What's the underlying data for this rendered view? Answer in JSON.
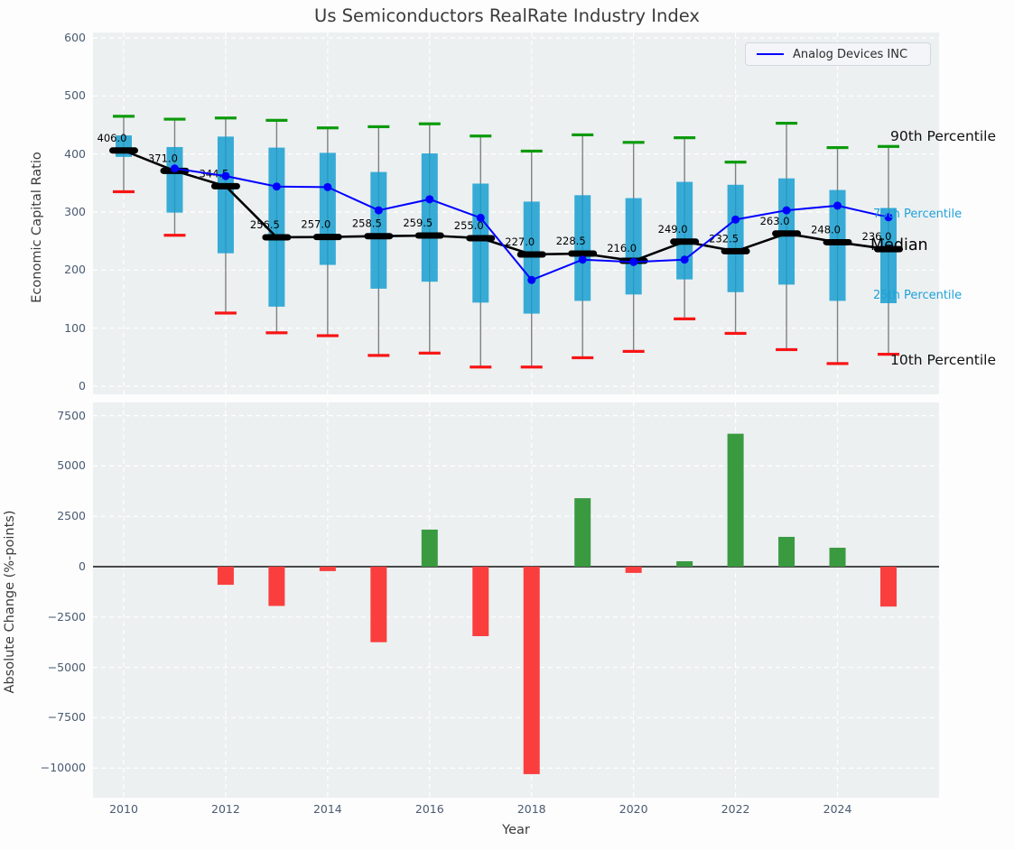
{
  "title": "Us Semiconductors RealRate Industry Index",
  "colors": {
    "company_line": "#0000FF",
    "median": "#000000",
    "box_fill": "#189FD0",
    "whisker": "#808080",
    "p90_cap": "#0B9A0B",
    "p10_cap": "#F81414",
    "bar_positive": "#3A9A40",
    "bar_negative": "#FA3E3E",
    "axes_background": "#ECF0F1",
    "grid": "#FFFFFF",
    "tick_label": "#4A5B70",
    "percentile_text_cyan": "#21A1D8",
    "text": "#3A3A3A"
  },
  "chart_data": [
    {
      "type": "boxplot+line",
      "title": "Us Semiconductors RealRate Industry Index",
      "ylabel": "Economic Capital Ratio",
      "xlabel": "",
      "x": [
        2010,
        2011,
        2012,
        2013,
        2014,
        2015,
        2016,
        2017,
        2018,
        2019,
        2020,
        2021,
        2022,
        2023,
        2024,
        2025
      ],
      "series": [
        {
          "name": "90th Percentile",
          "role": "p90",
          "values": [
            465,
            460,
            462,
            458,
            445,
            447,
            452,
            431,
            405,
            433,
            420,
            428,
            386,
            453,
            411,
            413
          ]
        },
        {
          "name": "75th Percentile",
          "role": "p75",
          "values": [
            432,
            412,
            430,
            411,
            402,
            369,
            401,
            349,
            318,
            329,
            324,
            352,
            347,
            358,
            338,
            307
          ]
        },
        {
          "name": "Median",
          "role": "median",
          "values": [
            406.0,
            371.0,
            344.5,
            256.5,
            257.0,
            258.5,
            259.5,
            255.0,
            227.0,
            228.5,
            216.0,
            249.0,
            232.5,
            263.0,
            248.0,
            236.0
          ]
        },
        {
          "name": "25th Percentile",
          "role": "p25",
          "values": [
            395,
            299,
            229,
            137,
            209,
            168,
            180,
            144,
            125,
            147,
            158,
            184,
            162,
            175,
            147,
            143
          ]
        },
        {
          "name": "10th Percentile",
          "role": "p10",
          "values": [
            335,
            260,
            126,
            92,
            87,
            53,
            57,
            33,
            33,
            49,
            60,
            116,
            91,
            63,
            39,
            55
          ]
        },
        {
          "name": "Analog Devices INC",
          "role": "company_line",
          "values": [
            null,
            375,
            362,
            344,
            343,
            303,
            322,
            290,
            183,
            218,
            214,
            218,
            287,
            303,
            311,
            291
          ]
        }
      ],
      "median_labels": [
        "406.0",
        "371.0",
        "344.5",
        "256.5",
        "257.0",
        "258.5",
        "259.5",
        "255.0",
        "227.0",
        "228.5",
        "216.0",
        "249.0",
        "232.5",
        "263.0",
        "248.0",
        "236.0"
      ],
      "annotations": [
        {
          "label": "90th Percentile",
          "style": "black"
        },
        {
          "label": "75th Percentile",
          "style": "cyan"
        },
        {
          "label": "Median",
          "style": "median"
        },
        {
          "label": "25th Percentile",
          "style": "cyan"
        },
        {
          "label": "10th Percentile",
          "style": "black"
        }
      ],
      "legend": {
        "position": "upper right",
        "entries": [
          "Analog Devices INC"
        ]
      },
      "ylim": [
        0,
        600
      ],
      "yticks": [
        {
          "v": 600,
          "label": "600"
        },
        {
          "v": 500,
          "label": "500"
        },
        {
          "v": 400,
          "label": "400"
        },
        {
          "v": 300,
          "label": "300"
        },
        {
          "v": 200,
          "label": "200"
        },
        {
          "v": 100,
          "label": "100"
        },
        {
          "v": 0,
          "label": "0"
        }
      ],
      "xticks": [
        {
          "v": 2010,
          "label": "2010"
        },
        {
          "v": 2012,
          "label": "2012"
        },
        {
          "v": 2014,
          "label": "2014"
        },
        {
          "v": 2016,
          "label": "2016"
        },
        {
          "v": 2018,
          "label": "2018"
        },
        {
          "v": 2020,
          "label": "2020"
        },
        {
          "v": 2022,
          "label": "2022"
        },
        {
          "v": 2024,
          "label": "2024"
        }
      ],
      "grid": true
    },
    {
      "type": "bar",
      "title": "",
      "ylabel": "Absolute Change (%-points)",
      "xlabel": "Year",
      "x": [
        2010,
        2011,
        2012,
        2013,
        2014,
        2015,
        2016,
        2017,
        2018,
        2019,
        2020,
        2021,
        2022,
        2023,
        2024,
        2025
      ],
      "values": [
        null,
        null,
        -900,
        -1950,
        -220,
        -3750,
        1840,
        -3450,
        -10300,
        3400,
        -310,
        270,
        6600,
        1480,
        940,
        -1980
      ],
      "ylim": [
        -11480,
        8150
      ],
      "yticks": [
        {
          "v": 7500,
          "label": "7500"
        },
        {
          "v": 5000,
          "label": "5000"
        },
        {
          "v": 2500,
          "label": "2500"
        },
        {
          "v": 0,
          "label": "0"
        },
        {
          "v": -2500,
          "label": "−2500"
        },
        {
          "v": -5000,
          "label": "−5000"
        },
        {
          "v": -7500,
          "label": "−7500"
        },
        {
          "v": -10000,
          "label": "−10000"
        }
      ],
      "xticks": [
        {
          "v": 2010,
          "label": "2010"
        },
        {
          "v": 2012,
          "label": "2012"
        },
        {
          "v": 2014,
          "label": "2014"
        },
        {
          "v": 2016,
          "label": "2016"
        },
        {
          "v": 2018,
          "label": "2018"
        },
        {
          "v": 2020,
          "label": "2020"
        },
        {
          "v": 2022,
          "label": "2022"
        },
        {
          "v": 2024,
          "label": "2024"
        }
      ],
      "grid": true
    }
  ]
}
